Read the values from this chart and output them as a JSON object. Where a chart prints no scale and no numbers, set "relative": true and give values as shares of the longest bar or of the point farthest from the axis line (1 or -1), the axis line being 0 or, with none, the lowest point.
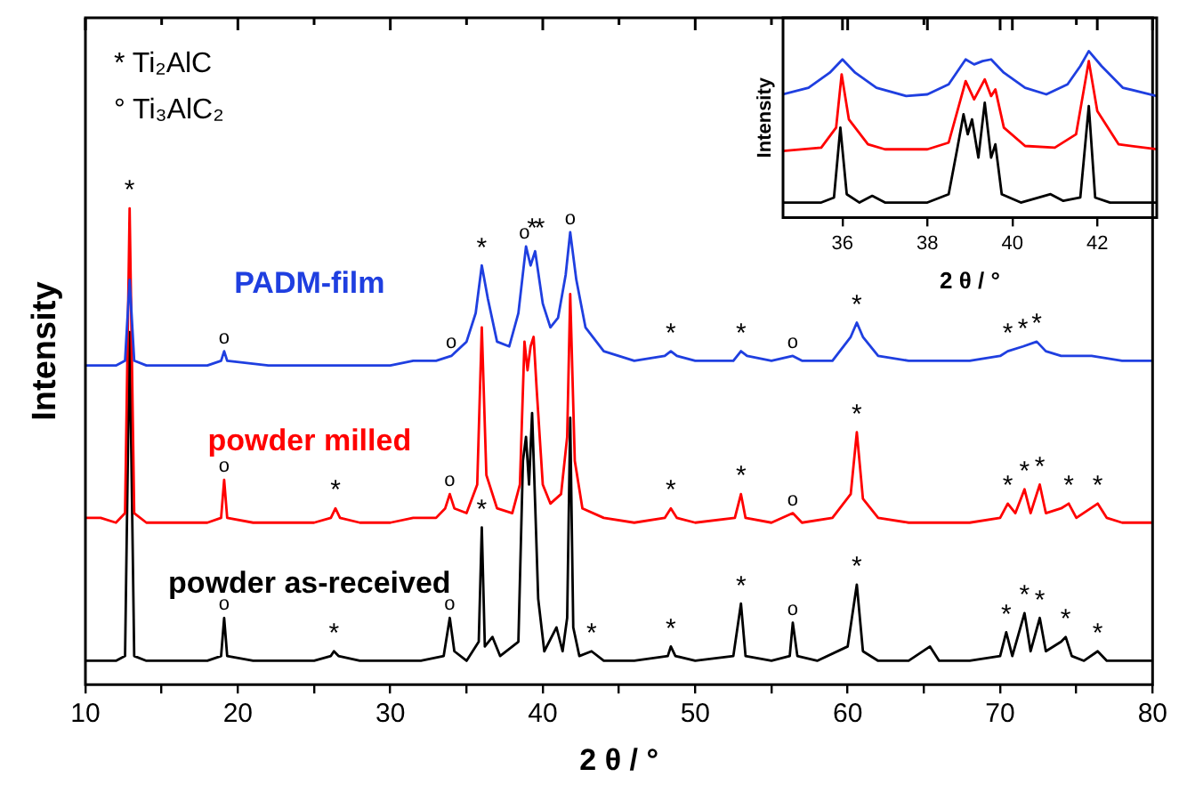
{
  "chart_data": [
    {
      "type": "line",
      "xlabel": "2 θ / °",
      "ylabel": "Intensity",
      "relative": true,
      "xlim": [
        10,
        80
      ],
      "xticks": [
        10,
        {
          "value": 15,
          "label": null
        },
        20,
        {
          "value": 25,
          "label": null
        },
        30,
        {
          "value": 35,
          "label": null
        },
        40,
        {
          "value": 45,
          "label": null
        },
        50,
        {
          "value": 55,
          "label": null
        },
        60,
        {
          "value": 65,
          "label": null
        },
        70,
        {
          "value": 75,
          "label": null
        },
        80
      ],
      "marker": "none",
      "line_style": "solid",
      "grid": false,
      "series": [
        {
          "name": "powder as-received",
          "color": "#000000",
          "x": [
            10,
            11,
            12,
            12.6,
            12.9,
            13.2,
            14,
            16,
            18,
            18.9,
            19.1,
            19.3,
            21,
            23,
            25,
            26.1,
            26.3,
            26.6,
            28,
            30,
            32,
            33.5,
            33.9,
            34.2,
            35,
            35.8,
            36.0,
            36.2,
            36.7,
            37.2,
            38.4,
            38.7,
            38.9,
            39.1,
            39.3,
            39.5,
            39.7,
            40.1,
            40.9,
            41.3,
            41.6,
            41.8,
            42.0,
            42.4,
            43.2,
            44,
            46,
            48.2,
            48.4,
            48.7,
            50,
            52.5,
            53.0,
            53.3,
            55,
            56.2,
            56.4,
            56.7,
            58,
            60.0,
            60.6,
            61.0,
            62,
            64,
            65.4,
            66,
            68,
            70,
            70.4,
            70.8,
            71.6,
            72.0,
            72.6,
            73.0,
            74.0,
            74.3,
            74.7,
            75.5,
            76.4,
            77,
            78,
            80
          ],
          "values": [
            0.05,
            0.05,
            0.05,
            0.06,
            0.74,
            0.06,
            0.05,
            0.05,
            0.05,
            0.06,
            0.14,
            0.06,
            0.05,
            0.05,
            0.05,
            0.06,
            0.07,
            0.06,
            0.05,
            0.05,
            0.05,
            0.06,
            0.14,
            0.07,
            0.05,
            0.09,
            0.33,
            0.08,
            0.1,
            0.06,
            0.09,
            0.47,
            0.52,
            0.42,
            0.57,
            0.38,
            0.18,
            0.07,
            0.12,
            0.07,
            0.14,
            0.56,
            0.12,
            0.06,
            0.07,
            0.05,
            0.05,
            0.06,
            0.08,
            0.06,
            0.05,
            0.06,
            0.17,
            0.06,
            0.05,
            0.06,
            0.13,
            0.06,
            0.05,
            0.08,
            0.21,
            0.07,
            0.05,
            0.05,
            0.08,
            0.05,
            0.05,
            0.06,
            0.11,
            0.06,
            0.15,
            0.07,
            0.14,
            0.07,
            0.09,
            0.1,
            0.06,
            0.05,
            0.07,
            0.05,
            0.05,
            0.05
          ]
        },
        {
          "name": "powder milled",
          "color": "#ff0000",
          "x": [
            10,
            11,
            12,
            12.6,
            12.9,
            13.2,
            14,
            16,
            18,
            18.9,
            19.1,
            19.3,
            21,
            23,
            25,
            26.1,
            26.4,
            26.7,
            28,
            30,
            31.5,
            33,
            33.6,
            33.9,
            34.2,
            35,
            35.7,
            36.0,
            36.3,
            37,
            38,
            38.5,
            38.8,
            39.0,
            39.2,
            39.4,
            39.6,
            40.0,
            40.5,
            41.2,
            41.6,
            41.8,
            42.1,
            42.6,
            44,
            46,
            48.0,
            48.4,
            48.8,
            50,
            52.6,
            53.0,
            53.3,
            55,
            56.4,
            57,
            59,
            60.2,
            60.6,
            61,
            62,
            64,
            66,
            68,
            70,
            70.5,
            71,
            71.6,
            72,
            72.6,
            73,
            74,
            74.5,
            75,
            76.4,
            77,
            78,
            80
          ],
          "values": [
            0.35,
            0.35,
            0.34,
            0.36,
            1.0,
            0.36,
            0.34,
            0.34,
            0.34,
            0.35,
            0.43,
            0.35,
            0.34,
            0.34,
            0.34,
            0.35,
            0.37,
            0.35,
            0.34,
            0.34,
            0.35,
            0.35,
            0.37,
            0.4,
            0.37,
            0.36,
            0.42,
            0.75,
            0.44,
            0.37,
            0.36,
            0.42,
            0.72,
            0.66,
            0.71,
            0.73,
            0.62,
            0.42,
            0.38,
            0.4,
            0.52,
            0.82,
            0.47,
            0.37,
            0.35,
            0.34,
            0.35,
            0.37,
            0.35,
            0.34,
            0.35,
            0.4,
            0.35,
            0.34,
            0.36,
            0.34,
            0.35,
            0.4,
            0.53,
            0.39,
            0.35,
            0.34,
            0.34,
            0.34,
            0.35,
            0.38,
            0.36,
            0.41,
            0.36,
            0.42,
            0.36,
            0.37,
            0.38,
            0.35,
            0.38,
            0.35,
            0.34,
            0.34
          ]
        },
        {
          "name": "PADM-film",
          "color": "#1f3fe0",
          "x": [
            10,
            11,
            12,
            12.6,
            12.9,
            13.2,
            14,
            16,
            18,
            18.9,
            19.1,
            19.3,
            22,
            25,
            28,
            30,
            31.5,
            33,
            34,
            35,
            35.6,
            36.0,
            36.4,
            37,
            37.8,
            38.4,
            38.9,
            39.2,
            39.5,
            40.0,
            40.5,
            41.0,
            41.5,
            41.8,
            42.2,
            42.8,
            44,
            46,
            48.0,
            48.4,
            48.8,
            50,
            52.5,
            53.0,
            53.4,
            55,
            56.4,
            57,
            59,
            60.2,
            60.6,
            61.0,
            62,
            64,
            66,
            68,
            70,
            70.5,
            71.5,
            72.4,
            73,
            74,
            76,
            78,
            80
          ],
          "values": [
            0.67,
            0.67,
            0.67,
            0.68,
            0.85,
            0.68,
            0.67,
            0.67,
            0.67,
            0.68,
            0.7,
            0.68,
            0.67,
            0.67,
            0.67,
            0.67,
            0.68,
            0.68,
            0.69,
            0.72,
            0.78,
            0.88,
            0.81,
            0.72,
            0.71,
            0.78,
            0.92,
            0.88,
            0.91,
            0.8,
            0.75,
            0.77,
            0.86,
            0.95,
            0.85,
            0.75,
            0.7,
            0.68,
            0.69,
            0.7,
            0.69,
            0.68,
            0.68,
            0.7,
            0.69,
            0.68,
            0.69,
            0.68,
            0.68,
            0.73,
            0.76,
            0.73,
            0.69,
            0.68,
            0.68,
            0.68,
            0.69,
            0.7,
            0.71,
            0.72,
            0.7,
            0.69,
            0.69,
            0.68,
            0.68
          ]
        }
      ],
      "annotations": [
        "* Ti₂AlC",
        "° Ti₃AlC₂",
        {
          "text": "*",
          "x": 12.9,
          "y": 1.0
        },
        {
          "text": "o",
          "x": 19.1,
          "y": 0.14
        },
        {
          "text": "*",
          "x": 26.3,
          "y": 0.07
        },
        {
          "text": "o",
          "x": 33.9,
          "y": 0.14
        },
        {
          "text": "*",
          "x": 36.0,
          "y": 0.33
        },
        {
          "text": "*",
          "x": 43.2,
          "y": 0.07
        },
        {
          "text": "*",
          "x": 48.4,
          "y": 0.08
        },
        {
          "text": "*",
          "x": 53.0,
          "y": 0.17
        },
        {
          "text": "o",
          "x": 56.4,
          "y": 0.13
        },
        {
          "text": "*",
          "x": 60.6,
          "y": 0.21
        },
        {
          "text": "*",
          "x": 70.4,
          "y": 0.11
        },
        {
          "text": "*",
          "x": 71.6,
          "y": 0.15
        },
        {
          "text": "*",
          "x": 72.6,
          "y": 0.14
        },
        {
          "text": "*",
          "x": 74.3,
          "y": 0.1
        },
        {
          "text": "*",
          "x": 76.4,
          "y": 0.07
        },
        {
          "text": "o",
          "x": 19.1,
          "y": 0.43
        },
        {
          "text": "*",
          "x": 26.4,
          "y": 0.37
        },
        {
          "text": "o",
          "x": 33.9,
          "y": 0.4
        },
        {
          "text": "*",
          "x": 48.4,
          "y": 0.37
        },
        {
          "text": "*",
          "x": 53.0,
          "y": 0.4
        },
        {
          "text": "o",
          "x": 56.4,
          "y": 0.36
        },
        {
          "text": "*",
          "x": 60.6,
          "y": 0.53
        },
        {
          "text": "*",
          "x": 70.5,
          "y": 0.38
        },
        {
          "text": "*",
          "x": 71.6,
          "y": 0.41
        },
        {
          "text": "*",
          "x": 72.6,
          "y": 0.42
        },
        {
          "text": "*",
          "x": 74.5,
          "y": 0.38
        },
        {
          "text": "*",
          "x": 76.4,
          "y": 0.38
        },
        {
          "text": "o",
          "x": 19.1,
          "y": 0.7
        },
        {
          "text": "o",
          "x": 34.0,
          "y": 0.69
        },
        {
          "text": "*",
          "x": 36.0,
          "y": 0.88
        },
        {
          "text": "o",
          "x": 38.8,
          "y": 0.92
        },
        {
          "text": "*",
          "x": 39.3,
          "y": 0.92
        },
        {
          "text": "*",
          "x": 39.8,
          "y": 0.92
        },
        {
          "text": "o",
          "x": 41.8,
          "y": 0.95
        },
        {
          "text": "*",
          "x": 48.4,
          "y": 0.7
        },
        {
          "text": "*",
          "x": 53.0,
          "y": 0.7
        },
        {
          "text": "o",
          "x": 56.4,
          "y": 0.69
        },
        {
          "text": "*",
          "x": 60.6,
          "y": 0.76
        },
        {
          "text": "*",
          "x": 70.5,
          "y": 0.7
        },
        {
          "text": "*",
          "x": 71.5,
          "y": 0.71
        },
        {
          "text": "*",
          "x": 72.4,
          "y": 0.72
        }
      ]
    },
    {
      "type": "line",
      "xlabel": "2 θ / °",
      "ylabel": "Intensity",
      "relative": true,
      "xlim": [
        34.6,
        43.4
      ],
      "xticks": [
        36,
        38,
        40,
        42
      ],
      "marker": "none",
      "line_style": "solid",
      "grid": false,
      "series": [
        {
          "color": "#000000",
          "x": [
            34.6,
            35.5,
            35.8,
            35.95,
            36.1,
            36.4,
            36.7,
            37,
            38,
            38.5,
            38.7,
            38.85,
            38.95,
            39.05,
            39.2,
            39.35,
            39.5,
            39.6,
            39.75,
            40.2,
            40.9,
            41.2,
            41.6,
            41.8,
            41.95,
            42.3,
            43.4
          ],
          "values": [
            0.09,
            0.09,
            0.12,
            0.54,
            0.14,
            0.09,
            0.13,
            0.09,
            0.09,
            0.14,
            0.41,
            0.62,
            0.5,
            0.59,
            0.36,
            0.69,
            0.36,
            0.44,
            0.14,
            0.09,
            0.14,
            0.1,
            0.12,
            0.67,
            0.12,
            0.09,
            0.09
          ]
        },
        {
          "color": "#ff0000",
          "x": [
            34.6,
            35.5,
            35.85,
            35.98,
            36.15,
            36.6,
            37,
            38,
            38.5,
            38.75,
            38.9,
            39.1,
            39.35,
            39.5,
            39.6,
            39.8,
            40.3,
            41,
            41.5,
            41.8,
            42.0,
            42.5,
            43.4
          ],
          "values": [
            0.4,
            0.42,
            0.54,
            0.86,
            0.59,
            0.44,
            0.41,
            0.41,
            0.45,
            0.68,
            0.82,
            0.71,
            0.83,
            0.73,
            0.77,
            0.54,
            0.43,
            0.42,
            0.5,
            0.94,
            0.64,
            0.44,
            0.41
          ]
        },
        {
          "color": "#1f3fe0",
          "x": [
            34.6,
            35.2,
            35.7,
            36.0,
            36.3,
            36.8,
            37.5,
            38.0,
            38.5,
            38.9,
            39.1,
            39.3,
            39.5,
            39.8,
            40.3,
            40.8,
            41.3,
            41.6,
            41.8,
            42.1,
            42.6,
            43.4
          ],
          "values": [
            0.74,
            0.78,
            0.87,
            0.95,
            0.87,
            0.78,
            0.73,
            0.74,
            0.8,
            0.95,
            0.92,
            0.94,
            0.95,
            0.87,
            0.78,
            0.74,
            0.8,
            0.91,
            1.0,
            0.91,
            0.78,
            0.73
          ]
        }
      ]
    }
  ]
}
